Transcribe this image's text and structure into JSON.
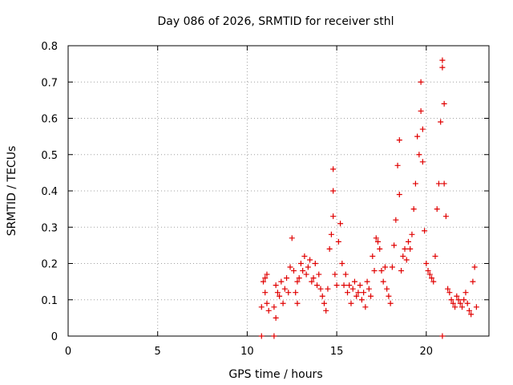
{
  "chart_data": {
    "type": "scatter",
    "title": "Day 086 of 2026, SRMTID for receiver sthl",
    "xlabel": "GPS time / hours",
    "ylabel": "SRMTID / TECUs",
    "xlim": [
      0,
      23.5
    ],
    "ylim": [
      0,
      0.8
    ],
    "x_ticks": [
      0,
      5,
      10,
      15,
      20
    ],
    "x_tick_labels": [
      "0",
      "5",
      "10",
      "15",
      "20"
    ],
    "y_ticks": [
      0,
      0.1,
      0.2,
      0.3,
      0.4,
      0.5,
      0.6,
      0.7,
      0.8
    ],
    "y_tick_labels": [
      "0",
      "0.1",
      "0.2",
      "0.3",
      "0.4",
      "0.5",
      "0.6",
      "0.7",
      "0.8"
    ],
    "grid": true,
    "marker": "+",
    "series": [
      {
        "name": "SRMTID",
        "color": "#e00000",
        "x": [
          10.8,
          11.5,
          20.9,
          10.8,
          10.9,
          11.0,
          11.0,
          11.1,
          11.1,
          11.2,
          11.5,
          11.6,
          11.6,
          11.7,
          11.8,
          11.9,
          12.0,
          12.1,
          12.2,
          12.3,
          12.4,
          12.5,
          12.6,
          12.7,
          12.8,
          12.8,
          12.9,
          13.0,
          13.1,
          13.2,
          13.3,
          13.4,
          13.5,
          13.6,
          13.7,
          13.8,
          13.9,
          14.0,
          14.1,
          14.2,
          14.3,
          14.4,
          14.5,
          14.6,
          14.7,
          14.8,
          14.8,
          14.8,
          14.9,
          15.0,
          15.1,
          15.2,
          15.3,
          15.4,
          15.5,
          15.6,
          15.7,
          15.8,
          15.9,
          16.0,
          16.1,
          16.2,
          16.3,
          16.4,
          16.5,
          16.6,
          16.7,
          16.8,
          16.9,
          17.0,
          17.1,
          17.2,
          17.3,
          17.4,
          17.5,
          17.6,
          17.7,
          17.8,
          17.9,
          18.0,
          18.1,
          18.2,
          18.3,
          18.4,
          18.5,
          18.5,
          18.6,
          18.7,
          18.8,
          18.9,
          19.0,
          19.1,
          19.2,
          19.3,
          19.4,
          19.5,
          19.6,
          19.7,
          19.7,
          19.8,
          19.8,
          19.9,
          20.0,
          20.1,
          20.2,
          20.3,
          20.4,
          20.5,
          20.6,
          20.7,
          20.8,
          20.9,
          20.9,
          21.0,
          21.0,
          21.1,
          21.2,
          21.3,
          21.4,
          21.5,
          21.6,
          21.7,
          21.8,
          21.9,
          22.0,
          22.1,
          22.2,
          22.3,
          22.4,
          22.5,
          22.6,
          22.7,
          22.8
        ],
        "y": [
          0.0,
          0.0,
          0.0,
          0.08,
          0.15,
          0.16,
          0.12,
          0.17,
          0.09,
          0.07,
          0.08,
          0.14,
          0.05,
          0.12,
          0.11,
          0.15,
          0.09,
          0.13,
          0.16,
          0.12,
          0.19,
          0.27,
          0.18,
          0.12,
          0.09,
          0.15,
          0.16,
          0.2,
          0.18,
          0.22,
          0.17,
          0.19,
          0.21,
          0.15,
          0.16,
          0.2,
          0.14,
          0.17,
          0.13,
          0.11,
          0.09,
          0.07,
          0.13,
          0.24,
          0.28,
          0.46,
          0.4,
          0.33,
          0.17,
          0.14,
          0.26,
          0.31,
          0.2,
          0.14,
          0.17,
          0.12,
          0.14,
          0.09,
          0.13,
          0.15,
          0.11,
          0.12,
          0.14,
          0.1,
          0.12,
          0.08,
          0.15,
          0.13,
          0.11,
          0.22,
          0.18,
          0.27,
          0.26,
          0.24,
          0.18,
          0.15,
          0.19,
          0.13,
          0.11,
          0.09,
          0.19,
          0.25,
          0.32,
          0.47,
          0.54,
          0.39,
          0.18,
          0.22,
          0.24,
          0.21,
          0.26,
          0.24,
          0.28,
          0.35,
          0.42,
          0.55,
          0.5,
          0.62,
          0.7,
          0.57,
          0.48,
          0.29,
          0.2,
          0.18,
          0.17,
          0.16,
          0.15,
          0.22,
          0.35,
          0.42,
          0.59,
          0.76,
          0.74,
          0.64,
          0.42,
          0.33,
          0.13,
          0.12,
          0.1,
          0.09,
          0.08,
          0.11,
          0.1,
          0.09,
          0.08,
          0.1,
          0.12,
          0.09,
          0.07,
          0.06,
          0.15,
          0.19,
          0.08
        ]
      }
    ]
  }
}
